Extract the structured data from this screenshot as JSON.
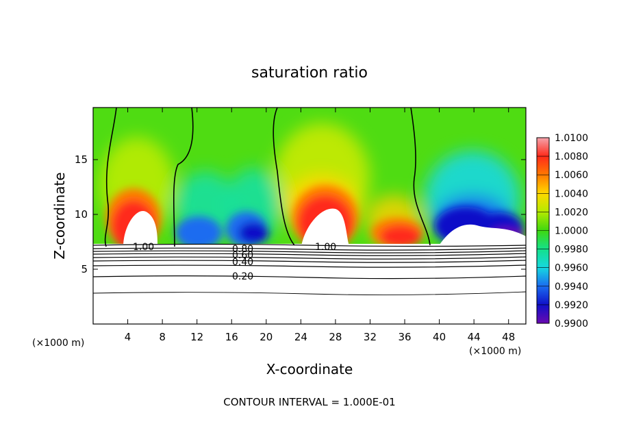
{
  "chart_data": {
    "type": "heatmap",
    "title": "saturation ratio",
    "xlabel": "X-coordinate",
    "ylabel": "Z-coordinate",
    "x_unit_left": "(×1000 m)",
    "x_unit_right": "(×1000 m)",
    "xlim": [
      0,
      50
    ],
    "ylim": [
      0,
      19.75
    ],
    "x_ticks": [
      4,
      8,
      12,
      16,
      20,
      24,
      28,
      32,
      36,
      40,
      44,
      48
    ],
    "y_ticks": [
      5,
      10,
      15
    ],
    "colorbar": {
      "labels": [
        "1.0100",
        "1.0080",
        "1.0060",
        "1.0040",
        "1.0020",
        "1.0000",
        "0.9980",
        "0.9960",
        "0.9940",
        "0.9920",
        "0.9900"
      ],
      "range": [
        0.99,
        1.01
      ]
    },
    "contour_labels": [
      {
        "text": "1.00",
        "x": 6.0,
        "z": 7.1
      },
      {
        "text": "0.80",
        "x": 17.2,
        "z": 6.9
      },
      {
        "text": "0.60",
        "x": 17.2,
        "z": 6.3
      },
      {
        "text": "0.40",
        "x": 17.0,
        "z": 5.6
      },
      {
        "text": "0.20",
        "x": 17.2,
        "z": 4.4
      },
      {
        "text": "1.00",
        "x": 26.5,
        "z": 7.1
      }
    ],
    "footer": "CONTOUR INTERVAL = 1.000E-01",
    "grid": false
  }
}
